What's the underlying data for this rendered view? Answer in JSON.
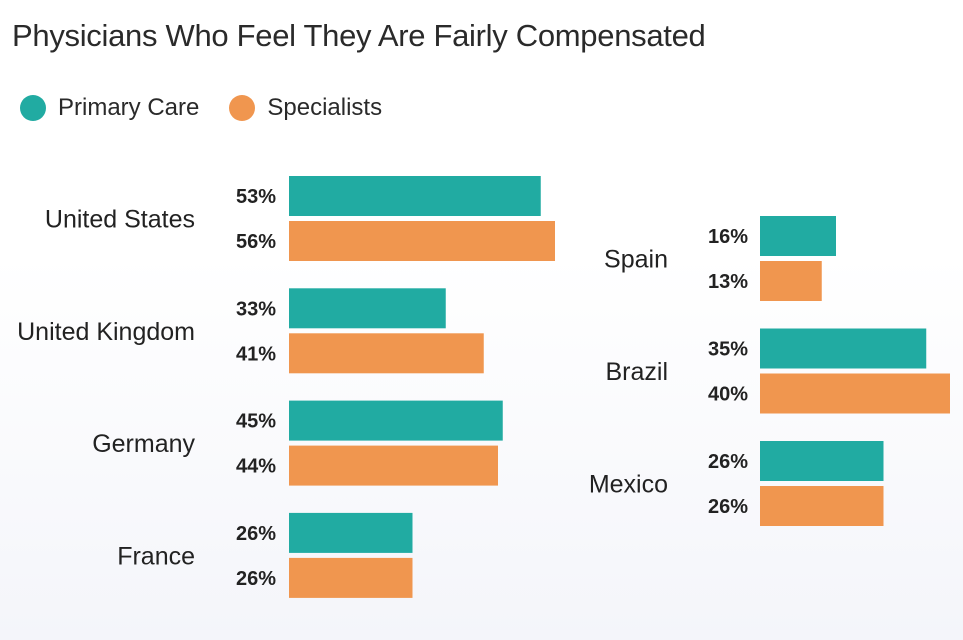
{
  "chart_data": {
    "type": "bar",
    "orientation": "horizontal",
    "title": "Physicians Who Feel They Are Fairly Compensated",
    "legend_position": "top-left",
    "value_suffix": "%",
    "series": [
      {
        "name": "Primary Care",
        "color": "#21aba2"
      },
      {
        "name": "Specialists",
        "color": "#f0964f"
      }
    ],
    "groups": [
      {
        "column": "left",
        "category": "United States",
        "values": [
          53,
          56
        ]
      },
      {
        "column": "left",
        "category": "United Kingdom",
        "values": [
          33,
          41
        ]
      },
      {
        "column": "left",
        "category": "Germany",
        "values": [
          45,
          44
        ]
      },
      {
        "column": "left",
        "category": "France",
        "values": [
          26,
          26
        ]
      },
      {
        "column": "right",
        "category": "Spain",
        "values": [
          16,
          13
        ]
      },
      {
        "column": "right",
        "category": "Brazil",
        "values": [
          35,
          40
        ]
      },
      {
        "column": "right",
        "category": "Mexico",
        "values": [
          26,
          26
        ]
      }
    ]
  }
}
